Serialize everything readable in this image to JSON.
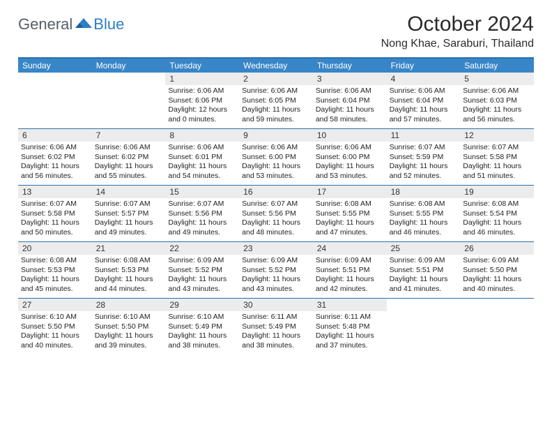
{
  "brand": {
    "general": "General",
    "blue": "Blue"
  },
  "title": "October 2024",
  "location": "Nong Khae, Saraburi, Thailand",
  "colors": {
    "header_bar": "#3886c8",
    "header_border": "#2a70ad",
    "daynum_bg": "#ececec",
    "text": "#222222",
    "logo_gray": "#555f66",
    "logo_blue": "#2b7fc6",
    "background": "#ffffff"
  },
  "weekdays": [
    "Sunday",
    "Monday",
    "Tuesday",
    "Wednesday",
    "Thursday",
    "Friday",
    "Saturday"
  ],
  "weeks": [
    [
      null,
      null,
      {
        "n": "1",
        "sunrise": "Sunrise: 6:06 AM",
        "sunset": "Sunset: 6:06 PM",
        "daylight": "Daylight: 12 hours and 0 minutes."
      },
      {
        "n": "2",
        "sunrise": "Sunrise: 6:06 AM",
        "sunset": "Sunset: 6:05 PM",
        "daylight": "Daylight: 11 hours and 59 minutes."
      },
      {
        "n": "3",
        "sunrise": "Sunrise: 6:06 AM",
        "sunset": "Sunset: 6:04 PM",
        "daylight": "Daylight: 11 hours and 58 minutes."
      },
      {
        "n": "4",
        "sunrise": "Sunrise: 6:06 AM",
        "sunset": "Sunset: 6:04 PM",
        "daylight": "Daylight: 11 hours and 57 minutes."
      },
      {
        "n": "5",
        "sunrise": "Sunrise: 6:06 AM",
        "sunset": "Sunset: 6:03 PM",
        "daylight": "Daylight: 11 hours and 56 minutes."
      }
    ],
    [
      {
        "n": "6",
        "sunrise": "Sunrise: 6:06 AM",
        "sunset": "Sunset: 6:02 PM",
        "daylight": "Daylight: 11 hours and 56 minutes."
      },
      {
        "n": "7",
        "sunrise": "Sunrise: 6:06 AM",
        "sunset": "Sunset: 6:02 PM",
        "daylight": "Daylight: 11 hours and 55 minutes."
      },
      {
        "n": "8",
        "sunrise": "Sunrise: 6:06 AM",
        "sunset": "Sunset: 6:01 PM",
        "daylight": "Daylight: 11 hours and 54 minutes."
      },
      {
        "n": "9",
        "sunrise": "Sunrise: 6:06 AM",
        "sunset": "Sunset: 6:00 PM",
        "daylight": "Daylight: 11 hours and 53 minutes."
      },
      {
        "n": "10",
        "sunrise": "Sunrise: 6:06 AM",
        "sunset": "Sunset: 6:00 PM",
        "daylight": "Daylight: 11 hours and 53 minutes."
      },
      {
        "n": "11",
        "sunrise": "Sunrise: 6:07 AM",
        "sunset": "Sunset: 5:59 PM",
        "daylight": "Daylight: 11 hours and 52 minutes."
      },
      {
        "n": "12",
        "sunrise": "Sunrise: 6:07 AM",
        "sunset": "Sunset: 5:58 PM",
        "daylight": "Daylight: 11 hours and 51 minutes."
      }
    ],
    [
      {
        "n": "13",
        "sunrise": "Sunrise: 6:07 AM",
        "sunset": "Sunset: 5:58 PM",
        "daylight": "Daylight: 11 hours and 50 minutes."
      },
      {
        "n": "14",
        "sunrise": "Sunrise: 6:07 AM",
        "sunset": "Sunset: 5:57 PM",
        "daylight": "Daylight: 11 hours and 49 minutes."
      },
      {
        "n": "15",
        "sunrise": "Sunrise: 6:07 AM",
        "sunset": "Sunset: 5:56 PM",
        "daylight": "Daylight: 11 hours and 49 minutes."
      },
      {
        "n": "16",
        "sunrise": "Sunrise: 6:07 AM",
        "sunset": "Sunset: 5:56 PM",
        "daylight": "Daylight: 11 hours and 48 minutes."
      },
      {
        "n": "17",
        "sunrise": "Sunrise: 6:08 AM",
        "sunset": "Sunset: 5:55 PM",
        "daylight": "Daylight: 11 hours and 47 minutes."
      },
      {
        "n": "18",
        "sunrise": "Sunrise: 6:08 AM",
        "sunset": "Sunset: 5:55 PM",
        "daylight": "Daylight: 11 hours and 46 minutes."
      },
      {
        "n": "19",
        "sunrise": "Sunrise: 6:08 AM",
        "sunset": "Sunset: 5:54 PM",
        "daylight": "Daylight: 11 hours and 46 minutes."
      }
    ],
    [
      {
        "n": "20",
        "sunrise": "Sunrise: 6:08 AM",
        "sunset": "Sunset: 5:53 PM",
        "daylight": "Daylight: 11 hours and 45 minutes."
      },
      {
        "n": "21",
        "sunrise": "Sunrise: 6:08 AM",
        "sunset": "Sunset: 5:53 PM",
        "daylight": "Daylight: 11 hours and 44 minutes."
      },
      {
        "n": "22",
        "sunrise": "Sunrise: 6:09 AM",
        "sunset": "Sunset: 5:52 PM",
        "daylight": "Daylight: 11 hours and 43 minutes."
      },
      {
        "n": "23",
        "sunrise": "Sunrise: 6:09 AM",
        "sunset": "Sunset: 5:52 PM",
        "daylight": "Daylight: 11 hours and 43 minutes."
      },
      {
        "n": "24",
        "sunrise": "Sunrise: 6:09 AM",
        "sunset": "Sunset: 5:51 PM",
        "daylight": "Daylight: 11 hours and 42 minutes."
      },
      {
        "n": "25",
        "sunrise": "Sunrise: 6:09 AM",
        "sunset": "Sunset: 5:51 PM",
        "daylight": "Daylight: 11 hours and 41 minutes."
      },
      {
        "n": "26",
        "sunrise": "Sunrise: 6:09 AM",
        "sunset": "Sunset: 5:50 PM",
        "daylight": "Daylight: 11 hours and 40 minutes."
      }
    ],
    [
      {
        "n": "27",
        "sunrise": "Sunrise: 6:10 AM",
        "sunset": "Sunset: 5:50 PM",
        "daylight": "Daylight: 11 hours and 40 minutes."
      },
      {
        "n": "28",
        "sunrise": "Sunrise: 6:10 AM",
        "sunset": "Sunset: 5:50 PM",
        "daylight": "Daylight: 11 hours and 39 minutes."
      },
      {
        "n": "29",
        "sunrise": "Sunrise: 6:10 AM",
        "sunset": "Sunset: 5:49 PM",
        "daylight": "Daylight: 11 hours and 38 minutes."
      },
      {
        "n": "30",
        "sunrise": "Sunrise: 6:11 AM",
        "sunset": "Sunset: 5:49 PM",
        "daylight": "Daylight: 11 hours and 38 minutes."
      },
      {
        "n": "31",
        "sunrise": "Sunrise: 6:11 AM",
        "sunset": "Sunset: 5:48 PM",
        "daylight": "Daylight: 11 hours and 37 minutes."
      },
      null,
      null
    ]
  ]
}
